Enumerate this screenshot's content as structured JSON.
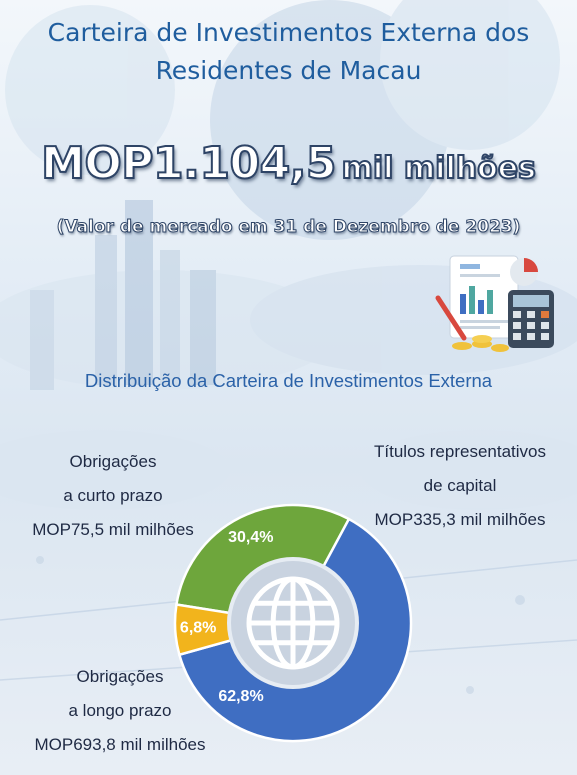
{
  "header": {
    "title_line1": "Carteira de Investimentos Externa dos",
    "title_line2": "Residentes de Macau",
    "headline_amount": "MOP1.104,5",
    "headline_unit": "mil milhões",
    "subnote": "(Valor de mercado em 31 de Dezembro de 2023)"
  },
  "section_title": "Distribuição da Carteira de Investimentos Externa",
  "colors": {
    "equity": "#6ea63c",
    "short_term": "#f2b41c",
    "long_term": "#3f6ec2",
    "ring_center": "#c9d3e0"
  },
  "labels": {
    "short_term": {
      "line1": "Obrigações",
      "line2": "a curto prazo",
      "line3": "MOP75,5 mil milhões"
    },
    "equity": {
      "line1": "Títulos representativos",
      "line2": "de capital",
      "line3": "MOP335,3 mil milhões"
    },
    "long_term": {
      "line1": "Obrigações",
      "line2": "a longo prazo",
      "line3": "MOP693,8 mil milhões"
    }
  },
  "chart_data": {
    "type": "pie",
    "title": "Distribuição da Carteira de Investimentos Externa",
    "total": {
      "value": 1104.5,
      "unit": "mil milhões MOP"
    },
    "categories": [
      "Títulos representativos de capital",
      "Obrigações a longo prazo",
      "Obrigações a curto prazo"
    ],
    "values": [
      335.3,
      693.8,
      75.5
    ],
    "percent_labels": [
      "30,4%",
      "62,8%",
      "6,8%"
    ],
    "colors": [
      "#6ea63c",
      "#3f6ec2",
      "#f2b41c"
    ]
  },
  "icons": [
    "globe-icon",
    "finance-documents-icon"
  ]
}
